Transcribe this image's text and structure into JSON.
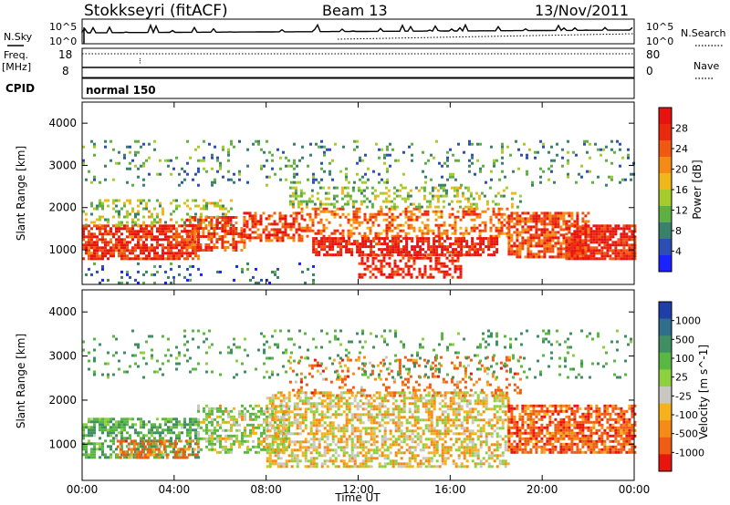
{
  "header": {
    "station": "Stokkseyri (fitACF)",
    "beam": "Beam 13",
    "date": "13/Nov/2011"
  },
  "labels": {
    "nsky": "N.Sky",
    "nsearch": "N.Search",
    "freq_top": "Freq.",
    "freq_unit": "[MHz]",
    "nave": "Nave",
    "cpid": "CPID",
    "cpid_value": "normal 150",
    "ylabel": "Slant Range [km]",
    "xlabel": "Time UT"
  },
  "noise_panel": {
    "left_ticks": [
      "10^5",
      "10^0"
    ],
    "right_ticks": [
      "10^5",
      "10^0"
    ]
  },
  "freq_panel": {
    "left_ticks": [
      "18",
      "8"
    ],
    "right_ticks": [
      "80",
      "0"
    ]
  },
  "x_ticks": [
    "00:00",
    "04:00",
    "08:00",
    "12:00",
    "16:00",
    "20:00",
    "00:00"
  ],
  "y_ticks": [
    "1000",
    "2000",
    "3000",
    "4000"
  ],
  "power_colorbar": {
    "label": "Power [dB]",
    "ticks": [
      "4",
      "8",
      "12",
      "16",
      "20",
      "24",
      "28"
    ],
    "colors": [
      "#1a22ff",
      "#2d4fb3",
      "#39816b",
      "#5fb042",
      "#a6cc2c",
      "#f0b71a",
      "#f58b14",
      "#ef5a10",
      "#ea2a0e",
      "#e8120e"
    ]
  },
  "velocity_colorbar": {
    "label": "Velocity [m s^-1]",
    "ticks": [
      "1000",
      "500",
      "100",
      "25",
      "-25",
      "-100",
      "-500",
      "-1000"
    ],
    "colors": [
      "#1f3fa8",
      "#2f6e8c",
      "#3f8f63",
      "#58b842",
      "#8ed13e",
      "#c8c8c0",
      "#f5b21c",
      "#f58a17",
      "#ef5c12",
      "#e8140e"
    ]
  },
  "chart_data": [
    {
      "type": "heatmap",
      "name": "Power",
      "xlabel": "Time UT",
      "ylabel": "Slant Range [km]",
      "xlim": [
        0,
        24
      ],
      "ylim": [
        180,
        4500
      ],
      "colorbar_label": "Power [dB]",
      "colorbar_ticks": [
        4,
        8,
        12,
        16,
        20,
        24,
        28
      ],
      "regions": [
        {
          "t0": 0.0,
          "t1": 5.0,
          "r0": 800,
          "r1": 1600,
          "value": 26,
          "fill": 0.75
        },
        {
          "t0": 0.0,
          "t1": 6.5,
          "r0": 1600,
          "r1": 2200,
          "value": 14,
          "fill": 0.3
        },
        {
          "t0": 4.5,
          "t1": 7.0,
          "r0": 1000,
          "r1": 1800,
          "value": 24,
          "fill": 0.6
        },
        {
          "t0": 7.0,
          "t1": 9.5,
          "r0": 1200,
          "r1": 1900,
          "value": 24,
          "fill": 0.6
        },
        {
          "t0": 9.5,
          "t1": 18.5,
          "r0": 1300,
          "r1": 2000,
          "value": 22,
          "fill": 0.45
        },
        {
          "t0": 10.0,
          "t1": 18.0,
          "r0": 900,
          "r1": 1300,
          "value": 28,
          "fill": 0.7
        },
        {
          "t0": 12.0,
          "t1": 16.5,
          "r0": 350,
          "r1": 900,
          "value": 27,
          "fill": 0.5
        },
        {
          "t0": 18.5,
          "t1": 22.0,
          "r0": 800,
          "r1": 1900,
          "value": 24,
          "fill": 0.7
        },
        {
          "t0": 21.0,
          "t1": 24.0,
          "r0": 800,
          "r1": 1600,
          "value": 27,
          "fill": 0.8
        },
        {
          "t0": 9.0,
          "t1": 19.0,
          "r0": 2000,
          "r1": 2500,
          "value": 14,
          "fill": 0.35
        },
        {
          "t0": 0.0,
          "t1": 24.0,
          "r0": 2500,
          "r1": 3600,
          "value": 10,
          "fill": 0.12
        },
        {
          "t0": 0.0,
          "t1": 10.0,
          "r0": 200,
          "r1": 700,
          "value": 8,
          "fill": 0.12
        }
      ]
    },
    {
      "type": "heatmap",
      "name": "Velocity",
      "xlabel": "Time UT",
      "ylabel": "Slant Range [km]",
      "xlim": [
        0,
        24
      ],
      "ylim": [
        180,
        4500
      ],
      "colorbar_label": "Velocity [m s^-1]",
      "colorbar_ticks": [
        1000,
        500,
        100,
        25,
        -25,
        -100,
        -500,
        -1000
      ],
      "regions": [
        {
          "t0": 0.0,
          "t1": 5.0,
          "r0": 700,
          "r1": 1600,
          "value": 250,
          "fill": 0.6
        },
        {
          "t0": 1.5,
          "t1": 5.0,
          "r0": 700,
          "r1": 1100,
          "value": -150,
          "fill": 0.5
        },
        {
          "t0": 5.0,
          "t1": 9.0,
          "r0": 800,
          "r1": 1900,
          "value": 80,
          "fill": 0.5
        },
        {
          "t0": 8.0,
          "t1": 18.5,
          "r0": 500,
          "r1": 2200,
          "value": 0,
          "fill": 0.55
        },
        {
          "t0": 18.5,
          "t1": 24.0,
          "r0": 800,
          "r1": 1900,
          "value": -200,
          "fill": 0.7
        },
        {
          "t0": 9.0,
          "t1": 19.0,
          "r0": 2100,
          "r1": 3000,
          "value": -150,
          "fill": 0.2
        },
        {
          "t0": 0.0,
          "t1": 24.0,
          "r0": 2500,
          "r1": 3600,
          "value": 300,
          "fill": 0.1
        }
      ]
    }
  ]
}
